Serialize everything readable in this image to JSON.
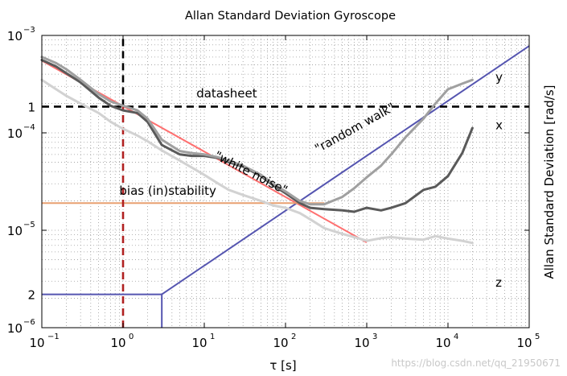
{
  "chart_data": {
    "type": "line",
    "title": "Allan Standard Deviation Gyroscope",
    "xlabel": "τ [s]",
    "ylabel": "Allan Standard Deviation [rad/s]",
    "xscale": "log",
    "yscale": "log",
    "xlim": [
      0.1,
      100000
    ],
    "ylim": [
      1e-06,
      0.001
    ],
    "grid": true,
    "x_ticks": [
      {
        "base": "10",
        "exp": "−1"
      },
      {
        "base": "10",
        "exp": "0"
      },
      {
        "base": "10",
        "exp": "1"
      },
      {
        "base": "10",
        "exp": "2"
      },
      {
        "base": "10",
        "exp": "3"
      },
      {
        "base": "10",
        "exp": "4"
      },
      {
        "base": "10",
        "exp": "5"
      }
    ],
    "y_ticks": [
      {
        "base": "10",
        "exp": "−6"
      },
      {
        "base": "10",
        "exp": "−5"
      },
      {
        "base": "10",
        "exp": "−4"
      },
      {
        "base": "10",
        "exp": "−3"
      }
    ],
    "y_markers": [
      {
        "label": "1",
        "value": 0.000186
      },
      {
        "label": "2",
        "value": 2.2e-06
      }
    ],
    "series": [
      {
        "name": "x",
        "color": "#5a5a5a",
        "x": [
          0.1,
          0.15,
          0.2,
          0.3,
          0.5,
          0.7,
          1,
          1.5,
          2,
          3,
          5,
          7,
          10,
          15,
          20,
          30,
          50,
          70,
          100,
          150,
          200,
          300,
          500,
          700,
          1000,
          1500,
          2000,
          3000,
          5000,
          7000,
          10000,
          15000,
          20000
        ],
        "y": [
          0.00056,
          0.00048,
          0.00041,
          0.00033,
          0.00023,
          0.00019,
          0.00017,
          0.00016,
          0.00013,
          7.5e-05,
          6e-05,
          5.8e-05,
          5.8e-05,
          5.5e-05,
          5e-05,
          4.5e-05,
          3.6e-05,
          2.9e-05,
          2.4e-05,
          1.9e-05,
          1.7e-05,
          1.65e-05,
          1.6e-05,
          1.55e-05,
          1.7e-05,
          1.6e-05,
          1.7e-05,
          1.9e-05,
          2.6e-05,
          2.8e-05,
          3.6e-05,
          6.2e-05,
          0.000112
        ]
      },
      {
        "name": "y",
        "color": "#a0a0a0",
        "x": [
          0.1,
          0.15,
          0.2,
          0.3,
          0.5,
          0.7,
          1,
          1.5,
          2,
          3,
          5,
          7,
          10,
          15,
          20,
          30,
          50,
          70,
          100,
          150,
          200,
          300,
          500,
          700,
          1000,
          1500,
          2000,
          3000,
          5000,
          7000,
          10000,
          15000,
          20000
        ],
        "y": [
          0.0006,
          0.00052,
          0.00045,
          0.00035,
          0.00025,
          0.00021,
          0.00019,
          0.00017,
          0.00014,
          8.5e-05,
          6.5e-05,
          6.2e-05,
          6e-05,
          5.6e-05,
          5.2e-05,
          4.6e-05,
          3.7e-05,
          3e-05,
          2.5e-05,
          2e-05,
          1.85e-05,
          1.85e-05,
          2.2e-05,
          2.7e-05,
          3.5e-05,
          4.6e-05,
          6e-05,
          9e-05,
          0.00014,
          0.0002,
          0.00028,
          0.00032,
          0.00035
        ]
      },
      {
        "name": "z",
        "color": "#d2d2d2",
        "x": [
          0.1,
          0.15,
          0.2,
          0.3,
          0.5,
          0.7,
          1,
          1.5,
          2,
          3,
          5,
          7,
          10,
          15,
          20,
          30,
          50,
          70,
          100,
          150,
          200,
          300,
          500,
          700,
          1000,
          1500,
          2000,
          3000,
          5000,
          7000,
          10000,
          15000,
          20000
        ],
        "y": [
          0.00035,
          0.00028,
          0.00024,
          0.0002,
          0.00016,
          0.00013,
          0.00011,
          9.4e-05,
          8.2e-05,
          6.6e-05,
          5.2e-05,
          4.4e-05,
          3.7e-05,
          3e-05,
          2.6e-05,
          2.3e-05,
          2e-05,
          1.8e-05,
          1.7e-05,
          1.5e-05,
          1.3e-05,
          1.05e-05,
          9.2e-06,
          8.5e-06,
          7.8e-06,
          8.3e-06,
          8.5e-06,
          8.2e-06,
          8e-06,
          8.7e-06,
          8.2e-06,
          7.8e-06,
          7.4e-06
        ]
      }
    ],
    "series_labels": [
      {
        "text": "y",
        "x": 28000,
        "y": 0.00037
      },
      {
        "text": "x",
        "x": 28000,
        "y": 0.00012
      },
      {
        "text": "z",
        "x": 28000,
        "y": 2.9e-06
      }
    ],
    "reference_lines": [
      {
        "name": "white noise",
        "label": "\"white noise\"",
        "color": "#ff7070",
        "from": [
          0.1,
          0.00055
        ],
        "to": [
          1000,
          7.5e-06
        ]
      },
      {
        "name": "random walk",
        "label": "\"random walk\"",
        "color": "#5555b0",
        "from": [
          3,
          2.2e-06
        ],
        "to": [
          100000,
          0.00078
        ]
      },
      {
        "name": "bias instability",
        "label": "bias (in)stability",
        "color": "#e8a070",
        "y": 1.9e-05,
        "x_range": [
          0.1,
          300
        ]
      },
      {
        "name": "datasheet",
        "label": "datasheet",
        "color": "#000000",
        "y": 0.000186,
        "x_range": [
          0.1,
          100000
        ],
        "dashed": true
      },
      {
        "name": "tau-one-black",
        "color": "#000000",
        "x": 1,
        "y_range": [
          0.000186,
          0.001
        ],
        "dashed": true
      },
      {
        "name": "tau-one-red",
        "color": "#b02020",
        "x": 1,
        "y_range": [
          1e-06,
          0.000186
        ],
        "dashed": true
      },
      {
        "name": "rw-horizontal",
        "color": "#5555b0",
        "y": 2.2e-06,
        "x_range": [
          0.1,
          3
        ]
      },
      {
        "name": "rw-vertical",
        "color": "#5555b0",
        "x": 3,
        "y_range": [
          1e-06,
          2.2e-06
        ]
      }
    ],
    "annotations": [
      {
        "text": "datasheet",
        "x": 8,
        "y": 0.00023,
        "rotation": 0
      },
      {
        "text": "\"white noise\"",
        "x": 13,
        "y": 5.5e-05,
        "rotation": 27
      },
      {
        "text": "\"random walk\"",
        "x": 250,
        "y": 6.2e-05,
        "rotation": -29
      },
      {
        "text": "bias (in)stability",
        "x": 0.9,
        "y": 2.3e-05,
        "rotation": 0
      }
    ],
    "watermark": "https://blog.csdn.net/qq_21950671"
  }
}
